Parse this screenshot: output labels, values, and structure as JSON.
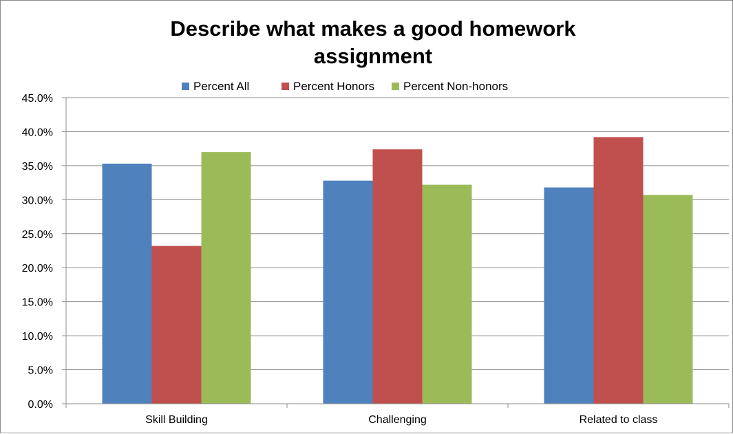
{
  "chart_data": {
    "type": "bar",
    "title": "Describe what makes a good homework assignment",
    "title_lines": [
      "Describe what makes a good homework",
      "assignment"
    ],
    "categories": [
      "Skill Building",
      "Challenging",
      "Related to class"
    ],
    "series": [
      {
        "name": "Percent All",
        "color": "#4f81bd",
        "values": [
          35.3,
          32.8,
          31.8
        ]
      },
      {
        "name": "Percent Honors",
        "color": "#c0504d",
        "values": [
          23.2,
          37.4,
          39.2
        ]
      },
      {
        "name": "Percent Non-honors",
        "color": "#9bbb59",
        "values": [
          37.0,
          32.2,
          30.7
        ]
      }
    ],
    "ylim": [
      0,
      45
    ],
    "ytick_step": 5,
    "ytick_labels": [
      "0.0%",
      "5.0%",
      "10.0%",
      "15.0%",
      "20.0%",
      "25.0%",
      "30.0%",
      "35.0%",
      "40.0%",
      "45.0%"
    ],
    "xlabel": "",
    "ylabel": "",
    "grid": true,
    "legend_position": "top"
  }
}
